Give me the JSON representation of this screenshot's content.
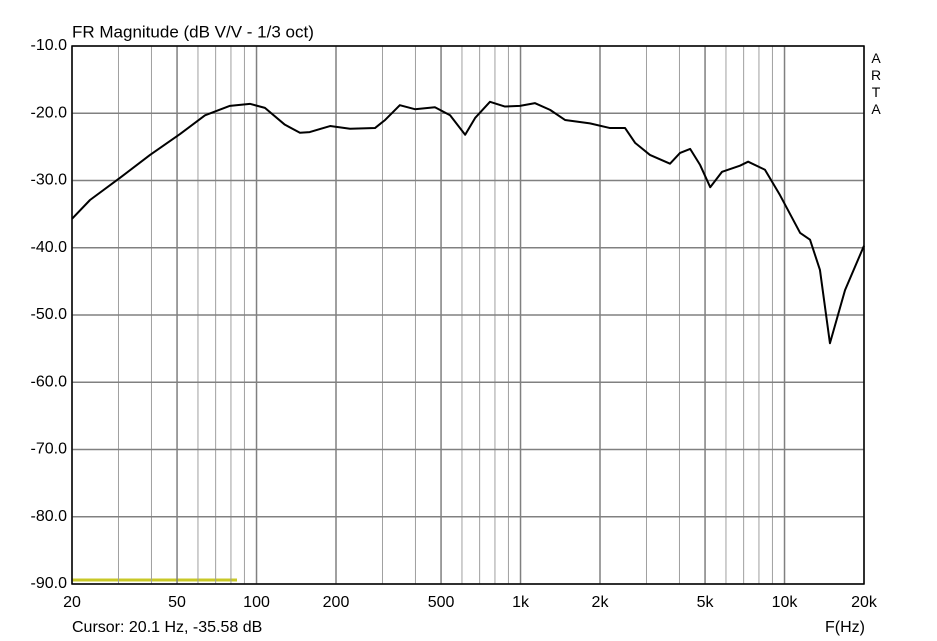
{
  "chart_data": {
    "type": "line",
    "title": "FR Magnitude (dB V/V - 1/3 oct)",
    "x_label": "F(Hz)",
    "cursor": "Cursor: 20.1 Hz, -35.58 dB",
    "watermark": "ARTA",
    "x_log": true,
    "grid": true,
    "xlim": [
      20,
      20000
    ],
    "xticks": [
      20,
      50,
      100,
      200,
      500,
      {
        "value": 1000,
        "label": "1k"
      },
      {
        "value": 2000,
        "label": "2k"
      },
      {
        "value": 5000,
        "label": "5k"
      },
      {
        "value": 10000,
        "label": "10k"
      },
      {
        "value": 20000,
        "label": "20k"
      }
    ],
    "xminor": [
      30,
      40,
      60,
      70,
      80,
      90,
      300,
      400,
      600,
      700,
      800,
      900,
      3000,
      4000,
      6000,
      7000,
      8000,
      9000
    ],
    "ylim": [
      -90,
      -10
    ],
    "yticks": [
      {
        "value": -10,
        "label": "-10.0"
      },
      {
        "value": -20,
        "label": "-20.0"
      },
      {
        "value": -30,
        "label": "-30.0"
      },
      {
        "value": -40,
        "label": "-40.0"
      },
      {
        "value": -50,
        "label": "-50.0"
      },
      {
        "value": -60,
        "label": "-60.0"
      },
      {
        "value": -70,
        "label": "-70.0"
      },
      {
        "value": -80,
        "label": "-80.0"
      },
      {
        "value": -90,
        "label": "-90.0"
      }
    ],
    "x": [
      20,
      23.4,
      30.4,
      39.5,
      51.3,
      63.8,
      79.3,
      94.4,
      107.6,
      128,
      146,
      159,
      190,
      226,
      281,
      307,
      349,
      398,
      474,
      541,
      617,
      673,
      766,
      873,
      995,
      1135,
      1294,
      1474,
      1833,
      2183,
      2489,
      2716,
      3092,
      3683,
      4020,
      4390,
      4790,
      5230,
      5800,
      6780,
      7280,
      8430,
      9620,
      11460,
      12490,
      13620,
      14860,
      16950,
      20000
    ],
    "series": [
      {
        "color": "#000000",
        "values": [
          -35.7,
          -32.9,
          -29.6,
          -26.2,
          -23.1,
          -20.3,
          -18.9,
          -18.6,
          -19.2,
          -21.7,
          -22.9,
          -22.8,
          -21.9,
          -22.3,
          -22.2,
          -21.0,
          -18.8,
          -19.4,
          -19.1,
          -20.3,
          -23.2,
          -20.7,
          -18.3,
          -19.0,
          -18.9,
          -18.5,
          -19.5,
          -21.0,
          -21.5,
          -22.2,
          -22.2,
          -24.4,
          -26.2,
          -27.5,
          -25.9,
          -25.3,
          -27.7,
          -31.0,
          -28.7,
          -27.8,
          -27.2,
          -28.4,
          -32.2,
          -37.8,
          -38.8,
          -43.3,
          -54.2,
          -46.3,
          -39.7
        ]
      }
    ]
  }
}
